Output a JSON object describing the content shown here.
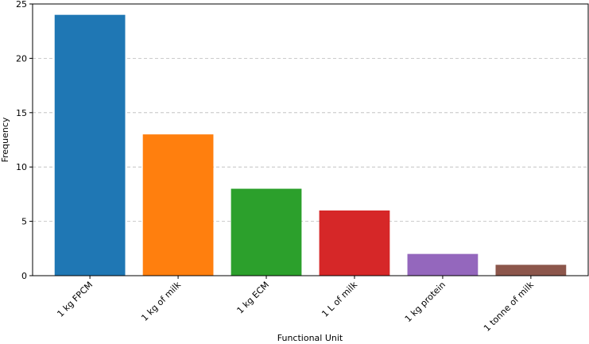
{
  "chart_data": {
    "type": "bar",
    "x_label": "Functional Unit",
    "y_label": "Frequency",
    "categories": [
      "1 kg FPCM",
      "1 kg of milk",
      "1 kg ECM",
      "1 L of milk",
      "1 kg protein",
      "1 tonne of milk"
    ],
    "values": [
      24,
      13,
      8,
      6,
      2,
      1
    ],
    "colors": [
      "#1f77b4",
      "#ff7f0e",
      "#2ca02c",
      "#d62728",
      "#9467bd",
      "#8c564b"
    ],
    "ylim": [
      0,
      25
    ],
    "yticks": [
      0,
      5,
      10,
      15,
      20,
      25
    ],
    "grid": true
  }
}
